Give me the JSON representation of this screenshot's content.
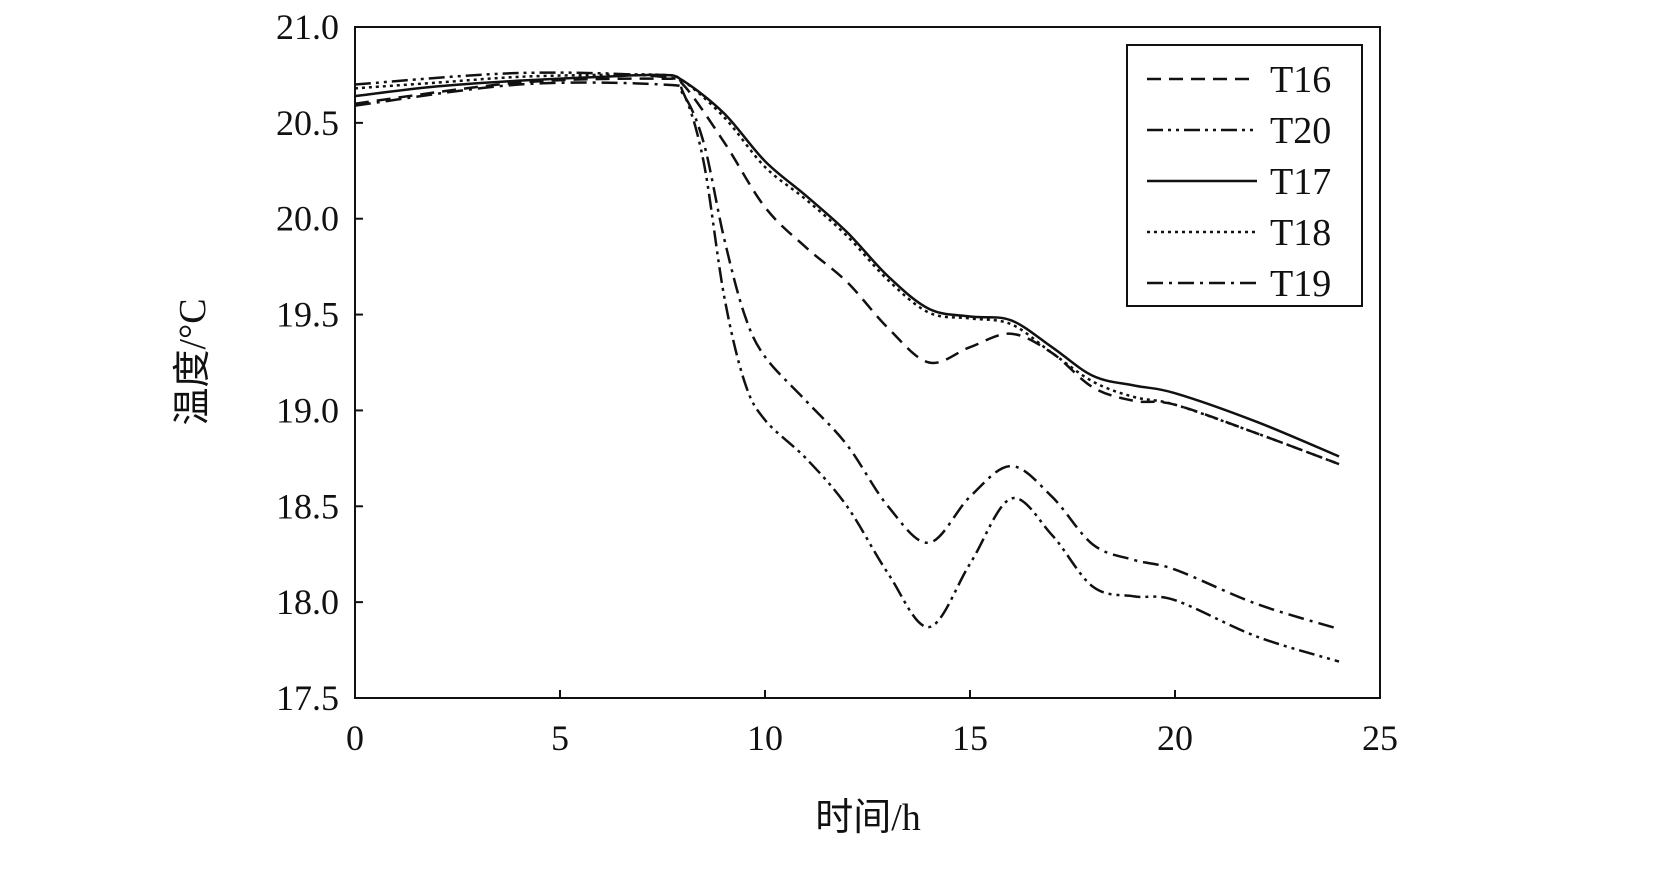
{
  "chart_data": {
    "type": "line",
    "title": "",
    "xlabel": "时间/h",
    "ylabel": "温度/°C",
    "xlim": [
      0,
      25
    ],
    "ylim": [
      17.5,
      21.0
    ],
    "xticks": [
      "0",
      "5",
      "10",
      "15",
      "20",
      "25"
    ],
    "yticks": [
      "17.5",
      "18.0",
      "18.5",
      "19.0",
      "19.5",
      "20.0",
      "20.5",
      "21.0"
    ],
    "grid": false,
    "legend_position": "top-right",
    "series": [
      {
        "name": "T16",
        "style": "dashed",
        "x": [
          0,
          4,
          7.5,
          8,
          9,
          10,
          11,
          12,
          13,
          14,
          15,
          16,
          17,
          18,
          19,
          20,
          22,
          24
        ],
        "y": [
          20.6,
          20.71,
          20.73,
          20.7,
          20.4,
          20.06,
          19.85,
          19.67,
          19.43,
          19.25,
          19.33,
          19.4,
          19.3,
          19.12,
          19.05,
          19.03,
          18.88,
          18.72
        ]
      },
      {
        "name": "T20",
        "style": "dash-dot-dot",
        "x": [
          0,
          4,
          7.5,
          8,
          8.5,
          9,
          9.5,
          10,
          11,
          12,
          13,
          14,
          15,
          16,
          17,
          18,
          19,
          20,
          22,
          24
        ],
        "y": [
          20.7,
          20.76,
          20.74,
          20.66,
          20.3,
          19.6,
          19.15,
          18.95,
          18.75,
          18.5,
          18.15,
          17.87,
          18.2,
          18.54,
          18.35,
          18.08,
          18.03,
          18.01,
          17.82,
          17.69
        ]
      },
      {
        "name": "T17",
        "style": "solid",
        "x": [
          0,
          2,
          4,
          6,
          7.5,
          8,
          9,
          10,
          11,
          12,
          13,
          14,
          15,
          16,
          17,
          18,
          19,
          20,
          22,
          24
        ],
        "y": [
          20.64,
          20.69,
          20.72,
          20.74,
          20.75,
          20.72,
          20.55,
          20.3,
          20.12,
          19.93,
          19.7,
          19.53,
          19.49,
          19.47,
          19.33,
          19.18,
          19.13,
          19.09,
          18.94,
          18.76
        ]
      },
      {
        "name": "T18",
        "style": "dotted",
        "x": [
          0,
          2,
          4,
          6,
          7.5,
          8,
          9,
          10,
          11,
          12,
          13,
          14,
          15,
          16,
          17,
          18,
          19,
          20,
          22,
          24
        ],
        "y": [
          20.68,
          20.71,
          20.74,
          20.75,
          20.75,
          20.72,
          20.53,
          20.27,
          20.1,
          19.91,
          19.68,
          19.51,
          19.48,
          19.45,
          19.3,
          19.15,
          19.07,
          19.03,
          18.88,
          18.72
        ]
      },
      {
        "name": "T19",
        "style": "dash-dot",
        "x": [
          0,
          4,
          7.5,
          8,
          8.5,
          9,
          9.5,
          10,
          11,
          12,
          13,
          14,
          15,
          16,
          17,
          18,
          19,
          20,
          22,
          24
        ],
        "y": [
          20.59,
          20.7,
          20.7,
          20.65,
          20.4,
          19.9,
          19.5,
          19.28,
          19.05,
          18.82,
          18.5,
          18.31,
          18.55,
          18.71,
          18.55,
          18.3,
          18.22,
          18.17,
          17.99,
          17.86
        ]
      }
    ]
  }
}
